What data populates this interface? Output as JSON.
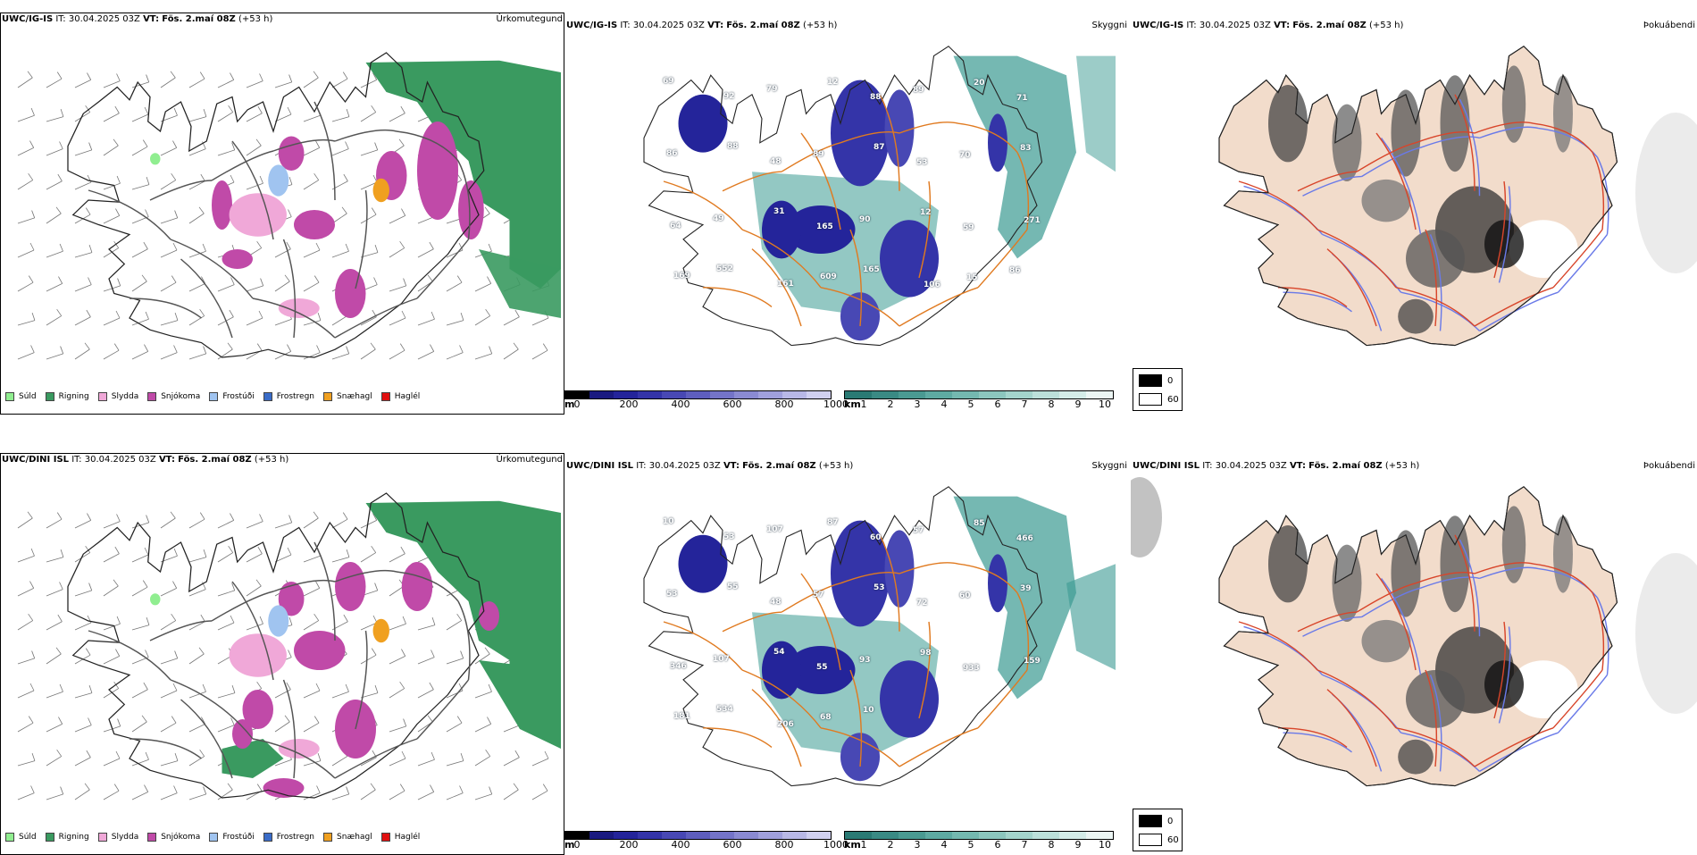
{
  "rows": [
    {
      "precip": {
        "model": "UWC/IG-IS",
        "it": "IT: 30.04.2025 03Z",
        "vt_label": "VT:",
        "vt": "Fös. 2.maí 08Z",
        "lead": "(+53 h)",
        "name": "Úrkomutegund"
      },
      "vis": {
        "model": "UWC/IG-IS",
        "it": "IT: 30.04.2025 03Z",
        "vt_label": "VT:",
        "vt": "Fös. 2.maí 08Z",
        "lead": "(+53 h)",
        "name": "Skyggni"
      },
      "fog": {
        "model": "UWC/IG-IS",
        "it": "IT: 30.04.2025 03Z",
        "vt_label": "VT:",
        "vt": "Fös. 2.maí 08Z",
        "lead": "(+53 h)",
        "name": "Þokuábendi"
      },
      "vis_labels": [
        "69",
        "92",
        "79",
        "12",
        "88",
        "89",
        "20",
        "71",
        "86",
        "88",
        "48",
        "89",
        "87",
        "53",
        "70",
        "83",
        "64",
        "49",
        "31",
        "165",
        "90",
        "12",
        "59",
        "271",
        "169",
        "552",
        "161",
        "609",
        "165",
        "106",
        "15",
        "86"
      ]
    },
    {
      "precip": {
        "model": "UWC/DINI ISL",
        "it": "IT: 30.04.2025 03Z",
        "vt_label": "VT:",
        "vt": "Fös. 2.maí 08Z",
        "lead": "(+53 h)",
        "name": "Úrkomutegund"
      },
      "vis": {
        "model": "UWC/DINI ISL",
        "it": "IT: 30.04.2025 03Z",
        "vt_label": "VT:",
        "vt": "Fös. 2.maí 08Z",
        "lead": "(+53 h)",
        "name": "Skyggni"
      },
      "fog": {
        "model": "UWC/DINI ISL",
        "it": "IT: 30.04.2025 03Z",
        "vt_label": "VT:",
        "vt": "Fös. 2.maí 08Z",
        "lead": "(+53 h)",
        "name": "Þokuábendi"
      },
      "vis_labels": [
        "10",
        "53",
        "107",
        "87",
        "60",
        "57",
        "85",
        "466",
        "53",
        "55",
        "48",
        "57",
        "53",
        "72",
        "60",
        "39",
        "346",
        "107",
        "54",
        "55",
        "93",
        "98",
        "933",
        "159",
        "181",
        "534",
        "206",
        "68",
        "10"
      ]
    }
  ],
  "precip_legend": [
    {
      "label": "Súld",
      "color": "#90ee90"
    },
    {
      "label": "Rigning",
      "color": "#3a9a60"
    },
    {
      "label": "Slydda",
      "color": "#f0a8d8"
    },
    {
      "label": "Snjókoma",
      "color": "#c04aa8"
    },
    {
      "label": "Frostúði",
      "color": "#a0c4f0"
    },
    {
      "label": "Frostregn",
      "color": "#3a6cc8"
    },
    {
      "label": "Snæhagl",
      "color": "#f0a020"
    },
    {
      "label": "Haglél",
      "color": "#e01010"
    }
  ],
  "elev_bar": {
    "unit": "m",
    "ticks": [
      "0",
      "200",
      "400",
      "600",
      "800",
      "1000"
    ],
    "colors": [
      "#000000",
      "#1a1a80",
      "#24249a",
      "#3434a8",
      "#4848b4",
      "#5e5ebe",
      "#7474c8",
      "#8a8ad2",
      "#a0a0dc",
      "#b8b8e6",
      "#d0d0f0"
    ]
  },
  "vis_bar": {
    "unit": "km",
    "ticks": [
      "1",
      "2",
      "3",
      "4",
      "5",
      "6",
      "7",
      "8",
      "9",
      "10"
    ],
    "colors": [
      "#2a7a74",
      "#3a8a84",
      "#4a9a92",
      "#5eaaa2",
      "#74b8b0",
      "#8cc6be",
      "#a4d4cc",
      "#bce0da",
      "#d4ece8",
      "#ecf6f4"
    ]
  },
  "fog_legend": [
    {
      "label": "0",
      "color": "#000000"
    },
    {
      "label": "60",
      "color": "#ffffff"
    }
  ],
  "colors": {
    "land_fog": "#f2dccb",
    "roads_vis": "#e07a20",
    "roads_fog": "#d8452a",
    "rivers": "#6a7ae8",
    "sea_teal": "#3a9a92",
    "rain_green": "#3a9a60"
  }
}
